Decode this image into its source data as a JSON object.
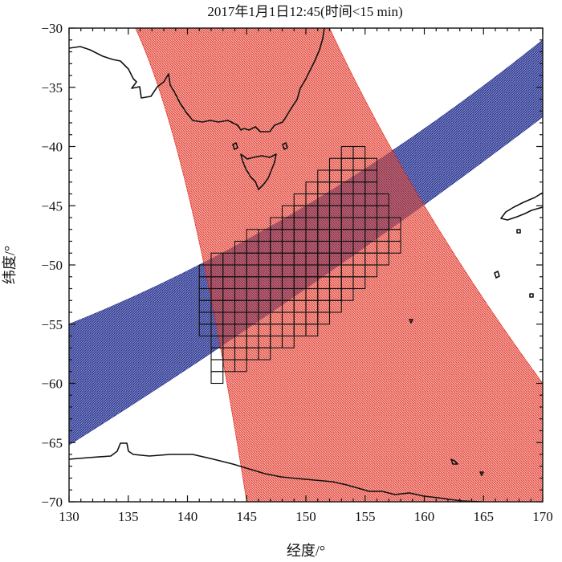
{
  "chart_data": {
    "type": "map",
    "title": "2017年1月1日12:45(时间<15 min)",
    "xlabel": "经度/°",
    "ylabel": "纬度/°",
    "xlim": [
      130,
      170
    ],
    "ylim": [
      -70,
      -30
    ],
    "xticks": [
      130,
      135,
      140,
      145,
      150,
      155,
      160,
      165,
      170
    ],
    "yticks": [
      -30,
      -35,
      -40,
      -45,
      -50,
      -55,
      -60,
      -65,
      -70
    ],
    "grid": false,
    "colors": {
      "red_swath": "#e8261c",
      "blue_swath": "#2b3592",
      "overlap": "#5a2a5e",
      "coastline": "#111111",
      "grid_cells": "#111111"
    },
    "grid_cell_size_deg": 1,
    "grid_cell_rows": [
      {
        "lat_top": -40,
        "lon_from": 153,
        "lon_to": 155
      },
      {
        "lat_top": -41,
        "lon_from": 152,
        "lon_to": 156
      },
      {
        "lat_top": -42,
        "lon_from": 151,
        "lon_to": 156
      },
      {
        "lat_top": -43,
        "lon_from": 150,
        "lon_to": 156
      },
      {
        "lat_top": -44,
        "lon_from": 149,
        "lon_to": 157
      },
      {
        "lat_top": -45,
        "lon_from": 148,
        "lon_to": 157
      },
      {
        "lat_top": -46,
        "lon_from": 147,
        "lon_to": 158
      },
      {
        "lat_top": -47,
        "lon_from": 145,
        "lon_to": 158
      },
      {
        "lat_top": -48,
        "lon_from": 144,
        "lon_to": 158
      },
      {
        "lat_top": -49,
        "lon_from": 142,
        "lon_to": 157
      },
      {
        "lat_top": -50,
        "lon_from": 141,
        "lon_to": 156
      },
      {
        "lat_top": -51,
        "lon_from": 141,
        "lon_to": 155
      },
      {
        "lat_top": -52,
        "lon_from": 141,
        "lon_to": 154
      },
      {
        "lat_top": -53,
        "lon_from": 141,
        "lon_to": 153
      },
      {
        "lat_top": -54,
        "lon_from": 141,
        "lon_to": 152
      },
      {
        "lat_top": -55,
        "lon_from": 141,
        "lon_to": 151
      },
      {
        "lat_top": -56,
        "lon_from": 142,
        "lon_to": 149
      },
      {
        "lat_top": -57,
        "lon_from": 142,
        "lon_to": 147
      },
      {
        "lat_top": -58,
        "lon_from": 142,
        "lon_to": 145
      },
      {
        "lat_top": -59,
        "lon_from": 142,
        "lon_to": 143
      }
    ],
    "red_swath": {
      "left_edge": [
        [
          135.6,
          -30
        ],
        [
          140.3,
          -45
        ],
        [
          145,
          -70
        ]
      ],
      "right_edge": [
        [
          152,
          -30
        ],
        [
          160,
          -45
        ],
        [
          170,
          -60
        ]
      ]
    },
    "blue_swath": {
      "upper_edge": [
        [
          130,
          -55
        ],
        [
          150,
          -45
        ],
        [
          170,
          -31
        ]
      ],
      "lower_edge": [
        [
          130,
          -65.2
        ],
        [
          150,
          -52
        ],
        [
          170,
          -37.5
        ]
      ]
    }
  }
}
